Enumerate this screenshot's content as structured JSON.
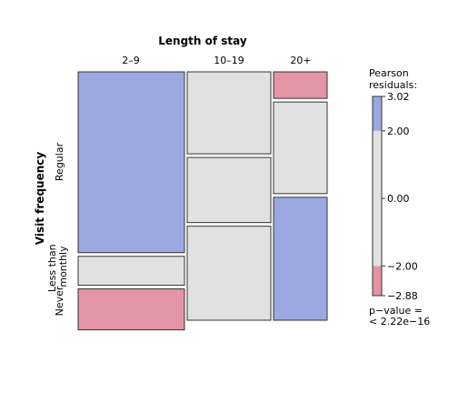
{
  "chart_data": {
    "type": "mosaic",
    "title": "",
    "xlabel": "Length of stay",
    "ylabel": "Visit frequency",
    "columns": [
      "2–9",
      "10–19",
      "20+"
    ],
    "rows": [
      "Regular",
      "Less than monthly",
      "Never"
    ],
    "column_proportions": [
      0.59,
      0.25,
      0.16
    ],
    "cells": [
      {
        "column": "2–9",
        "row": "Regular",
        "proportion": 0.75,
        "residual_band": "above 2.00",
        "color": "#9ca8e0"
      },
      {
        "column": "2–9",
        "row": "Less than monthly",
        "proportion": 0.12,
        "residual_band": "between -2.00 and 2.00",
        "color": "#e1e1e1"
      },
      {
        "column": "2–9",
        "row": "Never",
        "proportion": 0.17,
        "residual_band": "below -2.00",
        "color": "#e394a5"
      },
      {
        "column": "10–19",
        "row": "Regular",
        "proportion": 0.34,
        "residual_band": "between -2.00 and 2.00",
        "color": "#e1e1e1"
      },
      {
        "column": "10–19",
        "row": "Less than monthly",
        "proportion": 0.27,
        "residual_band": "between -2.00 and 2.00",
        "color": "#e1e1e1"
      },
      {
        "column": "10–19",
        "row": "Never",
        "proportion": 0.39,
        "residual_band": "between -2.00 and 2.00",
        "color": "#e1e1e1"
      },
      {
        "column": "20+",
        "row": "Regular",
        "proportion": 0.49,
        "residual_band": "mixed",
        "color": "#e1e1e1"
      },
      {
        "column": "20+",
        "row": "Less than monthly",
        "proportion": 0.0,
        "residual_band": "between -2.00 and 2.00",
        "color": "#e1e1e1"
      },
      {
        "column": "20+",
        "row": "Never",
        "proportion": 0.51,
        "residual_band": "above 2.00",
        "color": "#9ca8e0"
      }
    ],
    "sub_cells": [
      {
        "column": "20+",
        "row": "Regular",
        "segment": "top",
        "proportion": 0.11,
        "color": "#e394a5"
      },
      {
        "column": "20+",
        "row": "Regular",
        "segment": "bottom",
        "proportion": 0.38,
        "color": "#e1e1e1"
      }
    ],
    "legend": {
      "title_line1": "Pearson",
      "title_line2": "residuals:",
      "range": [
        -2.88,
        3.02
      ],
      "ticks": [
        "3.02",
        "2.00",
        "0.00",
        "−2.00",
        "−2.88"
      ],
      "tick_values": [
        3.02,
        2.0,
        0.0,
        -2.0,
        -2.88
      ],
      "bands": [
        {
          "from": 2.0,
          "to": 3.02,
          "color": "#9ca8e0"
        },
        {
          "from": -2.0,
          "to": 2.0,
          "color": "#e1e1e1"
        },
        {
          "from": -2.88,
          "to": -2.0,
          "color": "#e394a5"
        }
      ],
      "placement": "right"
    },
    "pvalue_line1": "p−value =",
    "pvalue_line2": "< 2.22e−16"
  }
}
